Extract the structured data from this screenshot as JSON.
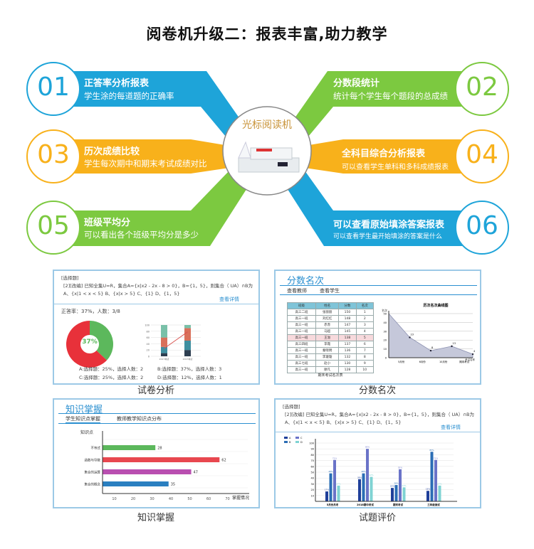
{
  "title": "阅卷机升级二：报表丰富,助力教学",
  "center": {
    "label": "光标阅读机"
  },
  "colors": {
    "blue": "#1ea4d9",
    "green": "#7cc940",
    "orange": "#f8b11b",
    "accent": "#2a8fd0"
  },
  "features": [
    {
      "num": "01",
      "title": "正答率分析报表",
      "desc": "学生涂的每道题的正确率"
    },
    {
      "num": "02",
      "title": "分数段统计",
      "desc": "统计每个学生每个题段的总成绩"
    },
    {
      "num": "03",
      "title": "历次成绩比较",
      "desc": "学生每次期中和期末考试成绩对比"
    },
    {
      "num": "04",
      "title": "全科目综合分析报表",
      "desc": "可以查看学生单科和多科成绩报表"
    },
    {
      "num": "05",
      "title": "班级平均分",
      "desc": "可以看出各个班级平均分是多少"
    },
    {
      "num": "06",
      "title": "可以查看原始填涂答案报表",
      "desc": "可以查看学生最开始填涂的答案是什么"
    }
  ],
  "panels": {
    "exam": {
      "caption": "试卷分析",
      "q_type": "[选择题]",
      "q_text": "[2][改编] 已知全集U=R，集合A={x|x2 - 2x - 8 > 0}，B={1，5}，则集合（    UA）∩B为",
      "q_options": "A、{x|1 < x < 5}      B、{x|x > 5}      C、{1}      D、{1，5}",
      "detail_link": "查看详情",
      "rate_text": "正答率：37%，人数：3/8",
      "donut_label": "37%",
      "stats": [
        "A:选择题：25%，选择人数：2",
        "B:选择题：37%，选择人数：3",
        "C:选择题：25%，选择人数：2",
        "D:选择题：12%，选择人数：1"
      ]
    },
    "rank": {
      "caption": "分数名次",
      "title": "分数名次",
      "tabs": [
        "查看教师",
        "查看学生"
      ],
      "table_headers": [
        "班级",
        "姓名",
        "分数",
        "名次"
      ],
      "table_rows": [
        [
          "高三二班",
          "张丽丽",
          "150",
          "1"
        ],
        [
          "高三一班",
          "刘红红",
          "148",
          "2"
        ],
        [
          "高三一班",
          "赤赤",
          "147",
          "3"
        ],
        [
          "高三一班",
          "马超",
          "145",
          "4"
        ],
        [
          "高三一班",
          "王溢",
          "138",
          "5"
        ],
        [
          "高三四班",
          "李霞",
          "137",
          "6"
        ],
        [
          "高三一班",
          "秦晓明",
          "136",
          "7"
        ],
        [
          "高三一班",
          "李璇璇",
          "132",
          "8"
        ],
        [
          "高三七班",
          "赵小",
          "130",
          "9"
        ],
        [
          "高三一班",
          "廖凡",
          "128",
          "10"
        ]
      ],
      "table_caption": "期末考试名次表"
    },
    "knowledge": {
      "caption": "知识掌握",
      "title": "知识掌握",
      "tabs": [
        "学生知识点掌握",
        "教师教学知识点分布"
      ]
    },
    "question": {
      "caption": "试题评价",
      "q_type": "[选择题]",
      "q_text": "[2][改编] 已知全集U=R，集合A={x|x2 - 2x - 8 > 0}，B={1，5}，则集合（    UA）∩B为",
      "q_options": "A、{x|1 < x < 5}      B、{x|x > 5}      C、{1}      D、{1，5}",
      "detail_link": "查看详情"
    }
  },
  "chart_data": [
    {
      "type": "pie",
      "title": "",
      "values": [
        {
          "label": "正确",
          "value": 37,
          "color": "#5cb85c"
        },
        {
          "label": "错误",
          "value": 63,
          "color": "#e8313a"
        }
      ]
    },
    {
      "type": "bar",
      "stacked": true,
      "categories": [
        "2017考试",
        "2017考试"
      ],
      "ylim": [
        0,
        100
      ],
      "yticks": [
        0,
        20,
        40,
        60,
        80,
        100
      ],
      "series": [
        {
          "values": [
            10,
            20
          ],
          "color": "#2d3e50"
        },
        {
          "values": [
            20,
            30
          ],
          "color": "#3e8fa0"
        },
        {
          "values": [
            30,
            40
          ],
          "color": "#d9705a"
        },
        {
          "values": [
            40,
            10
          ],
          "color": "#79c0a8"
        }
      ],
      "line": [
        25,
        78
      ]
    },
    {
      "type": "area",
      "title": "历次名次曲线图",
      "ylabel": "名次",
      "xlabel": "考试名称",
      "categories": [
        "5月份",
        "6月份",
        "10月份",
        "期末考试"
      ],
      "x": [
        0,
        1,
        2,
        3,
        4
      ],
      "values": [
        50,
        23,
        8,
        13,
        4
      ],
      "ylim": [
        0,
        50
      ],
      "yticks": [
        0,
        10,
        20,
        30,
        40,
        50
      ]
    },
    {
      "type": "bar",
      "orientation": "horizontal",
      "ylabel": "知识点",
      "xlabel": "掌握情况",
      "categories": [
        "不等式",
        "函数与导数",
        "集合的运算",
        "集合的概念"
      ],
      "values": [
        28,
        62,
        47,
        35
      ],
      "colors": [
        "#5cb85c",
        "#e8474f",
        "#b94fb0",
        "#2a7fc0"
      ],
      "xlim": [
        0,
        80
      ],
      "xticks": [
        10,
        20,
        30,
        40,
        50,
        60,
        70
      ]
    },
    {
      "type": "bar",
      "grouped": true,
      "title": "",
      "categories": [
        "5月份月考",
        "2018期中考试",
        "期末考试",
        "三年级测试"
      ],
      "ylim": [
        0,
        100
      ],
      "yticks": [
        10,
        20,
        30,
        40,
        50,
        60,
        70,
        80,
        90,
        100
      ],
      "series": [
        {
          "name": "A",
          "values": [
            17,
            38,
            23,
            18
          ],
          "color": "#1f3f9a"
        },
        {
          "name": "B",
          "values": [
            48,
            48,
            28,
            85
          ],
          "color": "#2a6db5"
        },
        {
          "name": "C",
          "values": [
            71,
            90,
            55,
            71
          ],
          "color": "#6a73c8"
        },
        {
          "name": "D",
          "values": [
            27,
            42,
            24,
            27
          ],
          "color": "#7fd3d3"
        }
      ]
    }
  ]
}
